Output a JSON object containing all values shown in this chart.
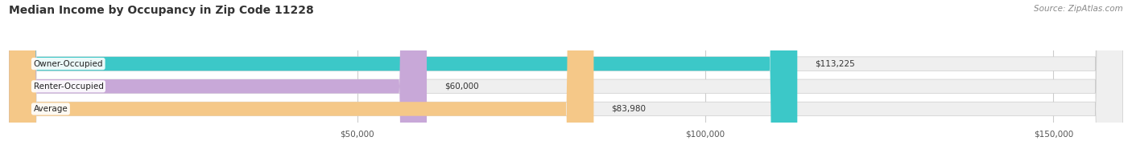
{
  "title": "Median Income by Occupancy in Zip Code 11228",
  "source": "Source: ZipAtlas.com",
  "categories": [
    "Owner-Occupied",
    "Renter-Occupied",
    "Average"
  ],
  "values": [
    113225,
    60000,
    83980
  ],
  "bar_colors": [
    "#3cc8c8",
    "#c8a8d8",
    "#f5c888"
  ],
  "bar_bg_color": "#efefef",
  "value_labels": [
    "$113,225",
    "$60,000",
    "$83,980"
  ],
  "xlim": [
    0,
    160000
  ],
  "xticks": [
    50000,
    100000,
    150000
  ],
  "xtick_labels": [
    "$50,000",
    "$100,000",
    "$150,000"
  ],
  "title_fontsize": 10,
  "source_fontsize": 7.5,
  "bar_label_fontsize": 7.5,
  "tick_fontsize": 7.5,
  "bar_height": 0.62,
  "background_color": "#ffffff",
  "grid_color": "#cccccc"
}
